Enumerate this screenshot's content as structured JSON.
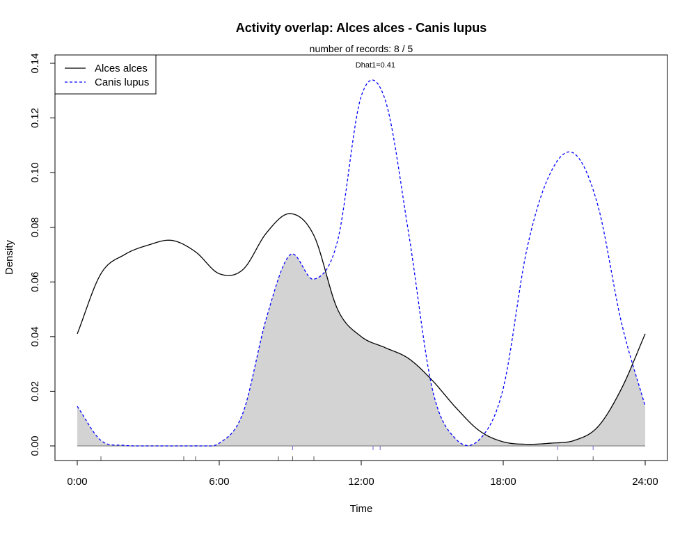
{
  "chart_data": {
    "type": "area",
    "title": "Activity overlap:  Alces alces - Canis lupus",
    "subtitle": "number of records: 8 / 5",
    "xlabel": "Time",
    "ylabel": "Density",
    "xlim": [
      0,
      24
    ],
    "ylim": [
      0,
      0.14
    ],
    "x_ticks": [
      0,
      6,
      12,
      18,
      24
    ],
    "x_tick_labels": [
      "0:00",
      "6:00",
      "12:00",
      "18:00",
      "24:00"
    ],
    "y_ticks": [
      0,
      0.02,
      0.04,
      0.06,
      0.08,
      0.1,
      0.12,
      0.14
    ],
    "y_tick_labels": [
      "0.00",
      "0.02",
      "0.04",
      "0.06",
      "0.08",
      "0.10",
      "0.12",
      "0.14"
    ],
    "grid": false,
    "legend_position": "top-left",
    "annotation": {
      "text": "Dhat1=0.41",
      "x": 12.6,
      "y": 0.1385
    },
    "overlap_fill_color": "#d3d3d3",
    "x": [
      0,
      1,
      2,
      3,
      4,
      5,
      6,
      7,
      8,
      9,
      10,
      11,
      12,
      13,
      14,
      15,
      16,
      17,
      18,
      19,
      20,
      21,
      22,
      23,
      24
    ],
    "series": [
      {
        "name": "Alces alces",
        "color": "#000000",
        "dash": "solid",
        "values": [
          0.041,
          0.063,
          0.07,
          0.0735,
          0.0752,
          0.071,
          0.063,
          0.0645,
          0.078,
          0.085,
          0.077,
          0.05,
          0.04,
          0.036,
          0.032,
          0.024,
          0.014,
          0.0055,
          0.0015,
          0.0006,
          0.001,
          0.002,
          0.007,
          0.021,
          0.041
        ],
        "records": [
          1.0,
          4.5,
          5.0,
          8.5,
          9.1,
          10.0,
          20.3,
          21.8
        ]
      },
      {
        "name": "Canis lupus",
        "color": "#0000ff",
        "dash": "dashed",
        "values": [
          0.0145,
          0.002,
          0.0002,
          0.0,
          0.0,
          0.0,
          0.001,
          0.012,
          0.047,
          0.07,
          0.061,
          0.075,
          0.128,
          0.127,
          0.078,
          0.021,
          0.0025,
          0.0024,
          0.021,
          0.072,
          0.1,
          0.107,
          0.088,
          0.045,
          0.0145
        ],
        "records": [
          9.1,
          12.5,
          12.8,
          20.3,
          21.8
        ]
      }
    ]
  }
}
